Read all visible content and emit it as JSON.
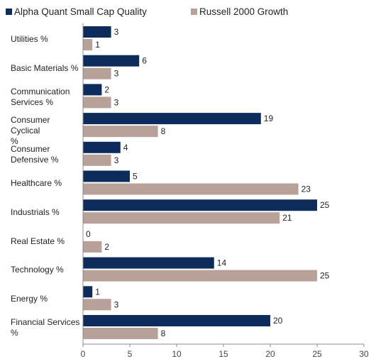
{
  "chart_data": {
    "type": "bar",
    "orientation": "horizontal",
    "categories": [
      [
        "Utilities %"
      ],
      [
        "Basic Materials %"
      ],
      [
        "Communication",
        "Services %"
      ],
      [
        "Consumer Cyclical",
        "%"
      ],
      [
        "Consumer",
        "Defensive %"
      ],
      [
        "Healthcare %"
      ],
      [
        "Industrials %"
      ],
      [
        "Real Estate %"
      ],
      [
        "Technology %"
      ],
      [
        "Energy %"
      ],
      [
        "Financial Services",
        "%"
      ]
    ],
    "series": [
      {
        "name": "Alpha Quant Small Cap Quality",
        "color": "#0d2c5c",
        "values": [
          3,
          6,
          2,
          19,
          4,
          5,
          25,
          0,
          14,
          1,
          20
        ]
      },
      {
        "name": "Russell 2000 Growth",
        "color": "#b7a199",
        "values": [
          1,
          3,
          3,
          8,
          3,
          23,
          21,
          2,
          25,
          3,
          8
        ]
      }
    ],
    "xlim": [
      0,
      30
    ],
    "xticks": [
      0,
      5,
      10,
      15,
      20,
      25,
      30
    ],
    "grid": false,
    "legend_position": "top"
  }
}
